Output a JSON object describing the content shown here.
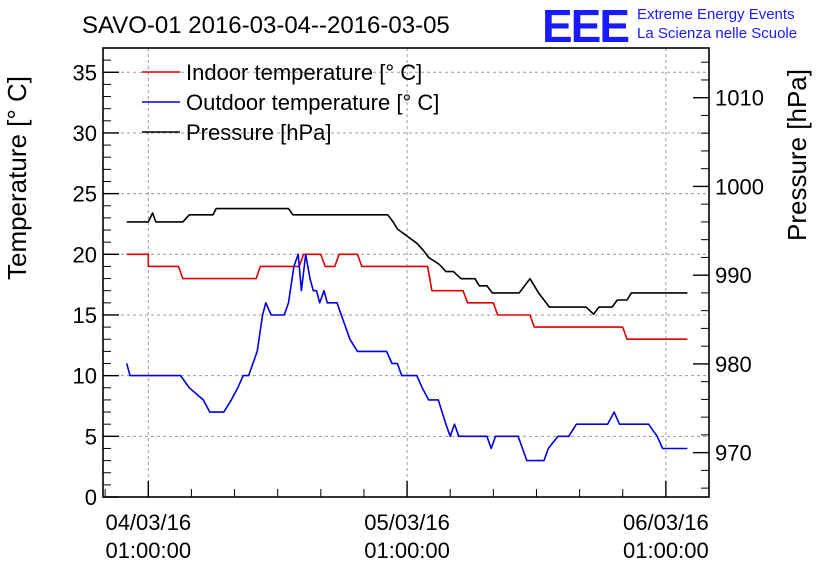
{
  "chart_data": {
    "type": "line",
    "title": "SAVO-01 2016-03-04--2016-03-05",
    "ylabel": "Temperature [° C]",
    "y2label": "Pressure [hPa]",
    "ylim": [
      0,
      37
    ],
    "y2lim": [
      965.0,
      1015.6
    ],
    "xlim_hours": [
      -4.2,
      52.0
    ],
    "grid": true,
    "legend_position": "top-left",
    "x_ticks": [
      {
        "hours": 0,
        "date": "04/03/16",
        "time": "01:00:00"
      },
      {
        "hours": 24,
        "date": "05/03/16",
        "time": "01:00:00"
      },
      {
        "hours": 48,
        "date": "06/03/16",
        "time": "01:00:00"
      }
    ],
    "y_ticks": [
      0,
      5,
      10,
      15,
      20,
      25,
      30,
      35
    ],
    "y2_ticks": [
      970,
      980,
      990,
      1000,
      1010
    ],
    "series": [
      {
        "name": "Indoor temperature [° C]",
        "color": "#e00000",
        "axis": "left",
        "points": [
          [
            -2.0,
            20
          ],
          [
            0.0,
            20
          ],
          [
            0.0,
            19
          ],
          [
            2.8,
            19
          ],
          [
            3.2,
            18
          ],
          [
            10.0,
            18
          ],
          [
            10.4,
            19
          ],
          [
            14.0,
            19
          ],
          [
            14.4,
            20
          ],
          [
            16.0,
            20
          ],
          [
            16.4,
            19
          ],
          [
            17.3,
            19
          ],
          [
            17.7,
            20
          ],
          [
            19.4,
            20
          ],
          [
            19.8,
            19
          ],
          [
            25.9,
            19
          ],
          [
            26.3,
            17
          ],
          [
            29.2,
            17
          ],
          [
            29.6,
            16
          ],
          [
            32.0,
            16
          ],
          [
            32.4,
            15
          ],
          [
            35.4,
            15
          ],
          [
            35.8,
            14
          ],
          [
            41.0,
            14
          ],
          [
            41.4,
            14
          ],
          [
            44.0,
            14
          ],
          [
            44.4,
            13
          ],
          [
            50.0,
            13
          ]
        ]
      },
      {
        "name": "Outdoor temperature [° C]",
        "color": "#0000e0",
        "axis": "left",
        "points": [
          [
            -2.0,
            11
          ],
          [
            -1.7,
            10
          ],
          [
            3.0,
            10
          ],
          [
            3.8,
            9
          ],
          [
            5.1,
            8
          ],
          [
            5.7,
            7
          ],
          [
            7.0,
            7
          ],
          [
            7.7,
            8
          ],
          [
            8.3,
            9
          ],
          [
            8.8,
            10
          ],
          [
            9.3,
            10
          ],
          [
            10.1,
            12
          ],
          [
            10.6,
            15
          ],
          [
            10.9,
            16
          ],
          [
            11.4,
            15
          ],
          [
            12.6,
            15
          ],
          [
            13.0,
            16
          ],
          [
            13.5,
            19
          ],
          [
            13.9,
            20
          ],
          [
            14.2,
            17
          ],
          [
            14.6,
            20
          ],
          [
            15.0,
            18
          ],
          [
            15.3,
            17
          ],
          [
            15.6,
            17
          ],
          [
            15.9,
            16
          ],
          [
            16.3,
            17
          ],
          [
            16.6,
            16
          ],
          [
            17.5,
            16
          ],
          [
            18.3,
            14
          ],
          [
            18.7,
            13
          ],
          [
            19.4,
            12
          ],
          [
            22.1,
            12
          ],
          [
            22.6,
            11
          ],
          [
            23.1,
            11
          ],
          [
            23.5,
            10
          ],
          [
            24.9,
            10
          ],
          [
            25.4,
            9
          ],
          [
            26.0,
            8
          ],
          [
            26.9,
            8
          ],
          [
            27.6,
            6
          ],
          [
            28.0,
            5
          ],
          [
            28.4,
            6
          ],
          [
            28.8,
            5
          ],
          [
            31.4,
            5
          ],
          [
            31.8,
            4
          ],
          [
            32.2,
            5
          ],
          [
            34.3,
            5
          ],
          [
            34.7,
            4
          ],
          [
            35.1,
            3
          ],
          [
            36.7,
            3
          ],
          [
            37.1,
            4
          ],
          [
            38.0,
            5
          ],
          [
            39.0,
            5
          ],
          [
            39.7,
            6
          ],
          [
            42.6,
            6
          ],
          [
            43.2,
            7
          ],
          [
            43.7,
            6
          ],
          [
            46.4,
            6
          ],
          [
            47.2,
            5
          ],
          [
            47.7,
            4
          ],
          [
            50.0,
            4
          ]
        ]
      },
      {
        "name": "Pressure [hPa]",
        "color": "#000000",
        "axis": "right",
        "points": [
          [
            -2.0,
            996.0
          ],
          [
            0.0,
            996.0
          ],
          [
            0.4,
            997.0
          ],
          [
            0.7,
            996.0
          ],
          [
            3.2,
            996.0
          ],
          [
            3.8,
            996.8
          ],
          [
            6.0,
            996.8
          ],
          [
            6.3,
            997.5
          ],
          [
            13.0,
            997.5
          ],
          [
            13.4,
            996.8
          ],
          [
            22.2,
            996.8
          ],
          [
            22.7,
            996.0
          ],
          [
            23.1,
            995.2
          ],
          [
            24.0,
            994.4
          ],
          [
            24.9,
            993.6
          ],
          [
            25.5,
            992.8
          ],
          [
            26.0,
            992.0
          ],
          [
            27.0,
            991.2
          ],
          [
            27.6,
            990.4
          ],
          [
            28.3,
            990.4
          ],
          [
            29.0,
            989.6
          ],
          [
            30.3,
            989.6
          ],
          [
            30.7,
            988.8
          ],
          [
            31.4,
            988.8
          ],
          [
            31.9,
            988.0
          ],
          [
            34.4,
            988.0
          ],
          [
            34.9,
            988.8
          ],
          [
            35.4,
            989.6
          ],
          [
            35.8,
            988.8
          ],
          [
            36.2,
            988.0
          ],
          [
            36.7,
            987.2
          ],
          [
            37.2,
            986.4
          ],
          [
            40.6,
            986.4
          ],
          [
            41.3,
            985.6
          ],
          [
            41.8,
            986.4
          ],
          [
            43.0,
            986.4
          ],
          [
            43.5,
            987.2
          ],
          [
            44.4,
            987.2
          ],
          [
            44.8,
            988.0
          ],
          [
            50.0,
            988.0
          ]
        ]
      }
    ]
  },
  "logo": {
    "mark": "EEE",
    "line1": "Extreme Energy Events",
    "line2": "La Scienza nelle Scuole"
  }
}
